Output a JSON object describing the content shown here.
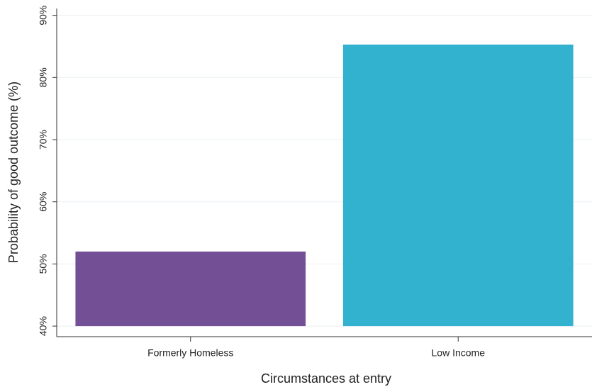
{
  "chart_data": {
    "type": "bar",
    "x_label": "Circumstances at entry",
    "y_label": "Probability of good outcome (%)",
    "categories": [
      "Formerly Homeless",
      "Low Income"
    ],
    "values": [
      52,
      85.3
    ],
    "colors": [
      "#734f96",
      "#33b2d0"
    ],
    "ylim": [
      38.3,
      91.1
    ],
    "yticks": [
      {
        "value": 40,
        "label": "40%"
      },
      {
        "value": 50,
        "label": "50%"
      },
      {
        "value": 60,
        "label": "60%"
      },
      {
        "value": 70,
        "label": "70%"
      },
      {
        "value": 80,
        "label": "80%"
      },
      {
        "value": 90,
        "label": "90%"
      }
    ],
    "grid": true
  }
}
